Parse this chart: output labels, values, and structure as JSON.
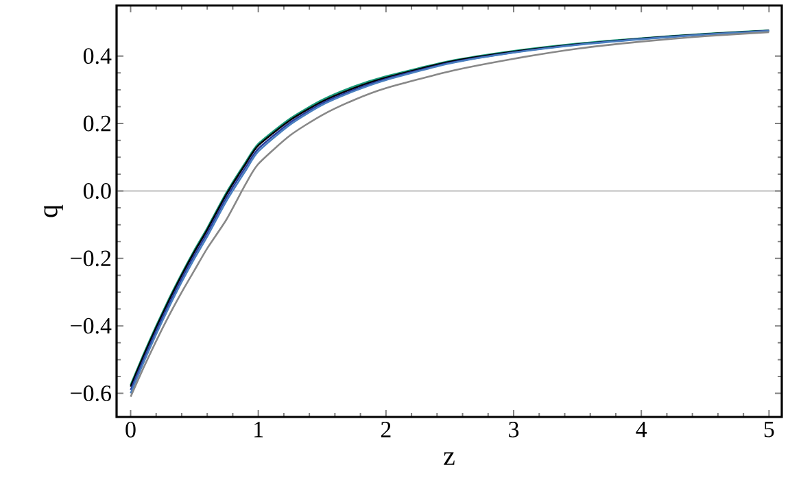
{
  "chart_data": {
    "type": "line",
    "xlabel": "z",
    "ylabel": "q",
    "x": [
      0,
      0.1,
      0.2,
      0.3,
      0.4,
      0.5,
      0.6,
      0.75,
      0.9,
      1,
      1.25,
      1.5,
      1.75,
      2,
      2.5,
      3,
      3.5,
      4,
      4.5,
      5
    ],
    "series": [
      {
        "color": "#1a9c7a",
        "values": [
          -0.575,
          -0.485,
          -0.4,
          -0.32,
          -0.245,
          -0.175,
          -0.11,
          -0.005,
          0.085,
          0.14,
          0.215,
          0.27,
          0.31,
          0.34,
          0.385,
          0.415,
          0.437,
          0.453,
          0.466,
          0.476
        ]
      },
      {
        "color": "#000000",
        "values": [
          -0.58,
          -0.49,
          -0.405,
          -0.325,
          -0.25,
          -0.18,
          -0.115,
          -0.01,
          0.08,
          0.135,
          0.21,
          0.265,
          0.305,
          0.336,
          0.383,
          0.413,
          0.435,
          0.452,
          0.465,
          0.475
        ]
      },
      {
        "color": "#2a3fa0",
        "values": [
          -0.59,
          -0.5,
          -0.415,
          -0.335,
          -0.26,
          -0.19,
          -0.125,
          -0.02,
          0.07,
          0.125,
          0.203,
          0.26,
          0.3,
          0.332,
          0.38,
          0.411,
          0.434,
          0.451,
          0.464,
          0.475
        ]
      },
      {
        "color": "#4a80c0",
        "values": [
          -0.6,
          -0.51,
          -0.425,
          -0.345,
          -0.27,
          -0.2,
          -0.135,
          -0.03,
          0.06,
          0.117,
          0.197,
          0.255,
          0.296,
          0.329,
          0.378,
          0.41,
          0.433,
          0.45,
          0.464,
          0.474
        ]
      },
      {
        "color": "#888888",
        "values": [
          -0.61,
          -0.525,
          -0.445,
          -0.37,
          -0.3,
          -0.235,
          -0.17,
          -0.085,
          0.02,
          0.08,
          0.165,
          0.225,
          0.27,
          0.305,
          0.355,
          0.392,
          0.422,
          0.443,
          0.459,
          0.471
        ]
      }
    ],
    "xlim": [
      -0.11,
      5.1
    ],
    "ylim": [
      -0.67,
      0.55
    ],
    "xticks": [
      0,
      1,
      2,
      3,
      4,
      5
    ],
    "yticks": [
      {
        "value": -0.6,
        "label": "−0.6"
      },
      {
        "value": -0.4,
        "label": "−0.4"
      },
      {
        "value": -0.2,
        "label": "−0.2"
      },
      {
        "value": 0,
        "label": "0.0"
      },
      {
        "value": 0.2,
        "label": "0.2"
      },
      {
        "value": 0.4,
        "label": "0.4"
      }
    ],
    "ref_lines": [
      {
        "axis": "y",
        "value": 0,
        "color": "#555555"
      }
    ],
    "marker": "none",
    "line_style": "solid"
  }
}
